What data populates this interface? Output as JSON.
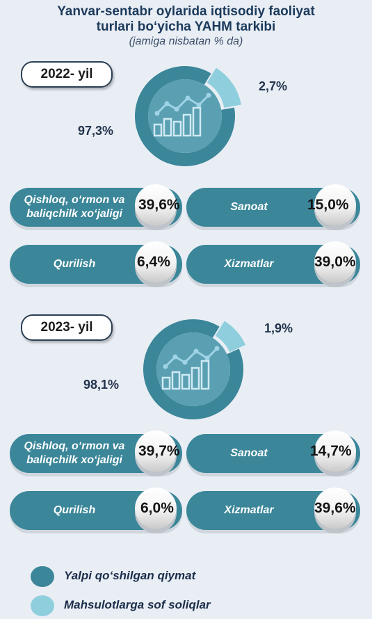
{
  "title": {
    "line1": "Yanvar-sentabr oylarida iqtisodiy faoliyat",
    "line2": "turlari bo‘yicha YAHM tarkibi",
    "line3": "(jamiga nisbatan % da)"
  },
  "colors": {
    "gva": "#3b8699",
    "taxes": "#8fcfdd",
    "pill": "#3b8699",
    "background": "#e9eef5"
  },
  "chart_data": [
    {
      "type": "pie",
      "year_label": "2022- yil",
      "slices": [
        {
          "name": "Yalpi qo‘shilgan qiymat",
          "value": 97.3,
          "label": "97,3%"
        },
        {
          "name": "Mahsulotlarga sof soliqlar",
          "value": 2.7,
          "label": "2,7%"
        }
      ],
      "sectors": [
        {
          "name": "Qishloq, o‘rmon va baliqchilk xo‘jaligi",
          "value": 39.6,
          "label": "39,6%"
        },
        {
          "name": "Sanoat",
          "value": 15.0,
          "label": "15,0%"
        },
        {
          "name": "Qurilish",
          "value": 6.4,
          "label": "6,4%"
        },
        {
          "name": "Xizmatlar",
          "value": 39.0,
          "label": "39,0%"
        }
      ]
    },
    {
      "type": "pie",
      "year_label": "2023- yil",
      "slices": [
        {
          "name": "Yalpi qo‘shilgan qiymat",
          "value": 98.1,
          "label": "98,1%"
        },
        {
          "name": "Mahsulotlarga sof soliqlar",
          "value": 1.9,
          "label": "1,9%"
        }
      ],
      "sectors": [
        {
          "name": "Qishloq, o‘rmon va baliqchilk xo‘jaligi",
          "value": 39.7,
          "label": "39,7%"
        },
        {
          "name": "Sanoat",
          "value": 14.7,
          "label": "14,7%"
        },
        {
          "name": "Qurilish",
          "value": 6.0,
          "label": "6,0%"
        },
        {
          "name": "Xizmatlar",
          "value": 39.6,
          "label": "39,6%"
        }
      ]
    }
  ],
  "legend": [
    {
      "label": "Yalpi qo‘shilgan qiymat",
      "color": "#3b8699"
    },
    {
      "label": "Mahsulotlarga sof soliqlar",
      "color": "#8fcfdd"
    }
  ]
}
